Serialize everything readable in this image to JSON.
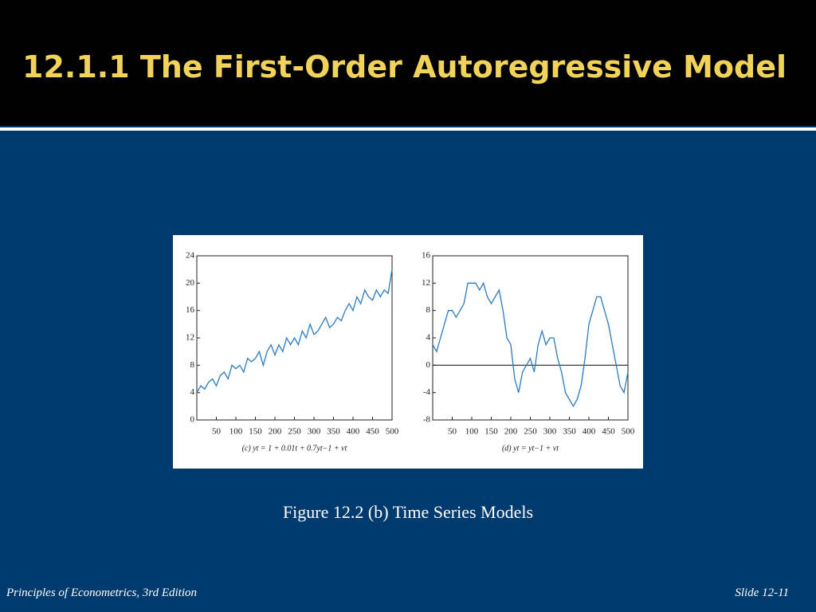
{
  "slide": {
    "title": "12.1.1 The First-Order Autoregressive Model",
    "caption": "Figure 12.2 (b) Time Series Models",
    "footer_left": "Principles of Econometrics, 3rd Edition",
    "footer_right": "Slide 12-11"
  },
  "chart_data": [
    {
      "type": "line",
      "subtitle": "(c) yt = 1 + 0.01t + 0.7yt−1 + vt",
      "color": "#2b7bc0",
      "x": [
        0,
        10,
        20,
        30,
        40,
        50,
        60,
        70,
        80,
        90,
        100,
        110,
        120,
        130,
        140,
        150,
        160,
        170,
        180,
        190,
        200,
        210,
        220,
        230,
        240,
        250,
        260,
        270,
        280,
        290,
        300,
        310,
        320,
        330,
        340,
        350,
        360,
        370,
        380,
        390,
        400,
        410,
        420,
        430,
        440,
        450,
        460,
        470,
        480,
        490,
        500
      ],
      "values": [
        4,
        5,
        4.5,
        5.5,
        6,
        5,
        6.5,
        7,
        6,
        8,
        7.5,
        8,
        7,
        9,
        8.5,
        9,
        10,
        8,
        10,
        11,
        9.5,
        11,
        10,
        12,
        11,
        12,
        11,
        13,
        12,
        14,
        12.5,
        13,
        14,
        15,
        13.5,
        14,
        15,
        14.5,
        16,
        17,
        16,
        18,
        17,
        19,
        18,
        17.5,
        19,
        18,
        19,
        18.5,
        22
      ],
      "xlim": [
        0,
        500
      ],
      "xticks": [
        50,
        100,
        150,
        200,
        250,
        300,
        350,
        400,
        450,
        500
      ],
      "ylim": [
        0,
        24
      ],
      "yticks": [
        0,
        4,
        8,
        12,
        16,
        20,
        24
      ]
    },
    {
      "type": "line",
      "subtitle": "(d) yt = yt−1 + vt",
      "color": "#2b7bc0",
      "x": [
        0,
        10,
        20,
        30,
        40,
        50,
        60,
        70,
        80,
        90,
        100,
        110,
        120,
        130,
        140,
        150,
        160,
        170,
        180,
        190,
        200,
        210,
        220,
        230,
        240,
        250,
        260,
        270,
        280,
        290,
        300,
        310,
        320,
        330,
        340,
        350,
        360,
        370,
        380,
        390,
        400,
        410,
        420,
        430,
        440,
        450,
        460,
        470,
        480,
        490,
        500
      ],
      "values": [
        3,
        2,
        4,
        6,
        8,
        8,
        7,
        8,
        9,
        12,
        12,
        12,
        11,
        12,
        10,
        9,
        10,
        11,
        8,
        4,
        3,
        -2,
        -4,
        -1,
        0,
        1,
        -1,
        3,
        5,
        3,
        4,
        4,
        1,
        -1,
        -4,
        -5,
        -6,
        -5,
        -3,
        1,
        6,
        8,
        10,
        10,
        8,
        6,
        3,
        0,
        -3,
        -4,
        -1
      ],
      "xlim": [
        0,
        500
      ],
      "xticks": [
        50,
        100,
        150,
        200,
        250,
        300,
        350,
        400,
        450,
        500
      ],
      "ylim": [
        -8,
        16
      ],
      "yticks": [
        -8,
        -4,
        0,
        4,
        8,
        12,
        16
      ],
      "hline": 0
    }
  ]
}
